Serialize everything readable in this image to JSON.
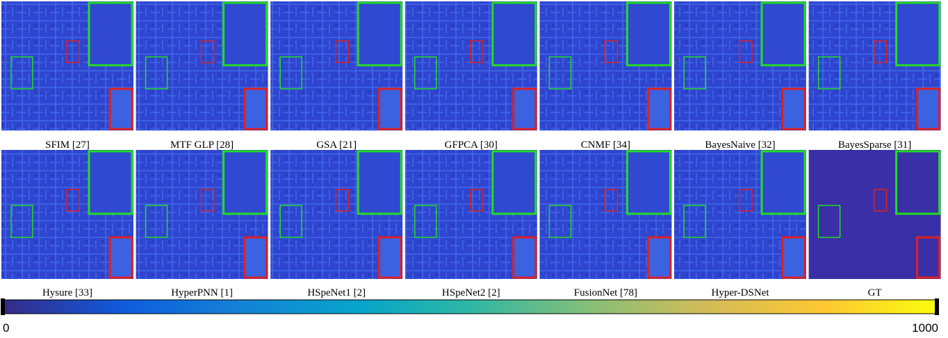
{
  "figure": {
    "captions": [
      "SFIM [27]",
      "MTF GLP [28]",
      "GSA [21]",
      "GFPCA [30]",
      "CNMF [34]",
      "BayesNaive [32]",
      "BayesSparse [31]",
      "Hysure [33]",
      "HyperPNN [1]",
      "HSpeNet1 [2]",
      "HSpeNet2 [2]",
      "FusionNet [78]",
      "Hyper-DSNet",
      "GT"
    ],
    "colorbar": {
      "lim": [
        0,
        1000
      ],
      "ticks": [
        0,
        1000
      ]
    }
  }
}
